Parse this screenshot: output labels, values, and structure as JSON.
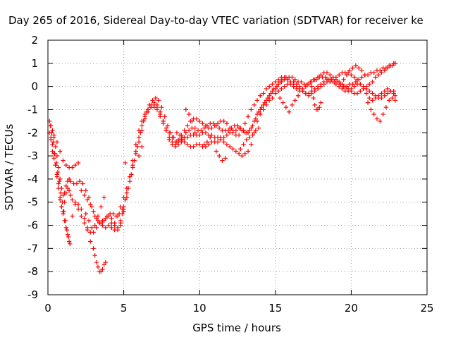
{
  "chart_data": {
    "type": "scatter",
    "title": "Day 265 of 2016, Sidereal Day-to-day VTEC variation (SDTVAR) for receiver ke",
    "xlabel": "GPS time / hours",
    "ylabel": "SDTVAR / TECUs",
    "xlim": [
      0,
      25
    ],
    "ylim": [
      -9,
      2
    ],
    "xticks": [
      0,
      5,
      10,
      15,
      20,
      25
    ],
    "xtick_labels": [
      "0",
      "5",
      "10",
      "15",
      "20",
      "25"
    ],
    "yticks": [
      2,
      1,
      0,
      -1,
      -2,
      -3,
      -4,
      -5,
      -6,
      -7,
      -8,
      -9
    ],
    "ytick_labels": [
      "2",
      "1",
      "0",
      "-1",
      "-2",
      "-3",
      "-4",
      "-5",
      "-6",
      "-7",
      "-8",
      "-9"
    ],
    "grid": true,
    "marker": "+",
    "color": "#ff0000",
    "series": [
      {
        "x": [
          0.1,
          0.2,
          0.3,
          0.4,
          0.5,
          0.6,
          0.7,
          0.8,
          0.9,
          1.0,
          1.1,
          1.2,
          1.3,
          1.4,
          1.5,
          1.6,
          1.8,
          2.0,
          2.2,
          2.4,
          2.6,
          2.8,
          3.0,
          3.2,
          3.4,
          3.6,
          3.8,
          4.0,
          4.2,
          4.4,
          4.6,
          4.8,
          5.0,
          5.2,
          5.4,
          5.6,
          5.8,
          6.0,
          6.2,
          6.4,
          6.6,
          6.8,
          7.0,
          7.2,
          7.4,
          7.6,
          7.8,
          8.0,
          8.2,
          8.4,
          8.6,
          8.8,
          9.0,
          9.2,
          9.4,
          9.6,
          9.8,
          10.0,
          10.2,
          10.4,
          10.6,
          10.8,
          11.0,
          11.2,
          11.4,
          11.6,
          11.8,
          12.0,
          12.2,
          12.4,
          12.6,
          12.8,
          13.0,
          13.2,
          13.4,
          13.6,
          13.8,
          14.0,
          14.2,
          14.4,
          14.6,
          14.8,
          15.0,
          15.2,
          15.4,
          15.6,
          15.8,
          16.0,
          16.2,
          16.4,
          16.6,
          16.8,
          17.0,
          17.2,
          17.4,
          17.6,
          17.8,
          18.0,
          18.2,
          18.4,
          18.6,
          18.8,
          19.0,
          19.2,
          19.4,
          19.6,
          19.8,
          20.0,
          20.2,
          20.4,
          20.6,
          20.8,
          21.0,
          21.2,
          21.4,
          21.6,
          21.8,
          22.0,
          22.2,
          22.4,
          22.6,
          22.8,
          22.9
        ],
        "y": [
          -2.0,
          -2.3,
          -2.8,
          -3.1,
          -3.4,
          -3.8,
          -4.2,
          -4.8,
          -5.2,
          -5.4,
          -5.0,
          -4.6,
          -4.4,
          -4.5,
          -4.7,
          -4.9,
          -5.1,
          -5.3,
          -5.6,
          -5.9,
          -6.1,
          -6.3,
          -6.3,
          -6.1,
          -5.9,
          -5.8,
          -5.7,
          -5.6,
          -5.7,
          -5.9,
          -5.6,
          -5.2,
          -4.8,
          -4.4,
          -3.9,
          -3.4,
          -2.9,
          -2.4,
          -1.9,
          -1.4,
          -1.1,
          -0.9,
          -0.8,
          -0.9,
          -1.2,
          -1.5,
          -1.9,
          -2.2,
          -2.4,
          -2.5,
          -2.4,
          -2.3,
          -2.2,
          -2.2,
          -2.1,
          -2.1,
          -2.1,
          -2.1,
          -2.0,
          -2.0,
          -2.1,
          -2.1,
          -2.2,
          -2.2,
          -2.2,
          -2.2,
          -2.1,
          -2.0,
          -1.9,
          -1.9,
          -1.8,
          -1.9,
          -2.0,
          -2.0,
          -1.8,
          -1.5,
          -1.2,
          -1.0,
          -0.8,
          -0.6,
          -0.4,
          -0.2,
          -0.1,
          0.1,
          0.2,
          0.3,
          0.3,
          0.2,
          0.2,
          0.1,
          0.0,
          -0.1,
          0.0,
          0.1,
          0.2,
          0.3,
          0.4,
          0.5,
          0.6,
          0.6,
          0.5,
          0.4,
          0.3,
          0.2,
          0.1,
          0.0,
          -0.1,
          -0.2,
          -0.3,
          -0.3,
          -0.2,
          -0.1,
          0.0,
          0.1,
          0.2,
          0.4,
          0.5,
          0.6,
          0.7,
          0.8,
          0.9,
          1.0,
          1.0
        ]
      },
      {
        "x": [
          0.2,
          0.3,
          0.4,
          0.5,
          0.6,
          0.7,
          0.8,
          0.9,
          1.0,
          1.1,
          1.2,
          1.3,
          1.4,
          1.5,
          1.7,
          1.9,
          2.1,
          2.3,
          2.5,
          2.7,
          2.9,
          3.1,
          3.3,
          3.5,
          3.7,
          3.9,
          4.1,
          4.3,
          4.5,
          4.7,
          4.9,
          5.1,
          5.3,
          5.5,
          5.7,
          5.9,
          6.1,
          6.3,
          6.5,
          6.7,
          6.9,
          7.1,
          7.3,
          7.5,
          7.7,
          7.9,
          8.1,
          8.3,
          8.5,
          8.7,
          8.9,
          9.1,
          9.3,
          9.5,
          9.7,
          9.9,
          10.1,
          10.3,
          10.5,
          10.7,
          10.9,
          11.1,
          11.3,
          11.5,
          11.7,
          11.9,
          12.1,
          12.3,
          12.5,
          12.7,
          12.9,
          13.1,
          13.3,
          13.5,
          13.7,
          13.9,
          14.1,
          14.3,
          14.5,
          14.7,
          14.9,
          15.1,
          15.3,
          15.5,
          15.7,
          15.9,
          16.1,
          16.3,
          16.5,
          16.7,
          16.9,
          17.1,
          17.3,
          17.5,
          17.7,
          17.9,
          18.1,
          18.3,
          18.5,
          18.7,
          18.9,
          19.1,
          19.3,
          19.5,
          19.7,
          19.9,
          20.1,
          20.3,
          20.5,
          20.7,
          20.9,
          21.1,
          21.3,
          21.5,
          21.7,
          21.9,
          22.1,
          22.3,
          22.5,
          22.7,
          22.9
        ],
        "y": [
          -1.7,
          -1.9,
          -2.2,
          -2.6,
          -3.0,
          -3.5,
          -4.0,
          -4.4,
          -4.7,
          -4.6,
          -4.3,
          -4.1,
          -4.0,
          -4.1,
          -4.2,
          -4.2,
          -4.1,
          -4.2,
          -4.5,
          -4.8,
          -5.2,
          -5.6,
          -5.8,
          -5.9,
          -5.8,
          -5.6,
          -5.5,
          -5.5,
          -5.6,
          -5.5,
          -5.3,
          -4.9,
          -4.4,
          -3.8,
          -3.2,
          -2.6,
          -2.0,
          -1.5,
          -1.1,
          -0.8,
          -0.6,
          -0.5,
          -0.6,
          -0.9,
          -1.3,
          -1.7,
          -2.0,
          -2.2,
          -2.4,
          -2.3,
          -2.2,
          -2.0,
          -1.9,
          -1.8,
          -1.8,
          -1.9,
          -1.9,
          -1.8,
          -1.7,
          -1.6,
          -1.6,
          -1.7,
          -1.8,
          -1.9,
          -1.9,
          -1.9,
          -1.8,
          -1.7,
          -1.7,
          -1.8,
          -1.9,
          -2.0,
          -1.9,
          -1.7,
          -1.4,
          -1.1,
          -0.9,
          -0.7,
          -0.5,
          -0.3,
          -0.1,
          0.0,
          0.2,
          0.3,
          0.4,
          0.4,
          0.4,
          0.3,
          0.2,
          0.2,
          0.1,
          0.1,
          0.2,
          0.3,
          0.3,
          0.4,
          0.4,
          0.4,
          0.3,
          0.3,
          0.2,
          0.2,
          0.1,
          0.0,
          0.0,
          0.1,
          0.1,
          0.2,
          0.3,
          0.4,
          0.5,
          0.5,
          0.6,
          0.6,
          0.7,
          0.7,
          0.8,
          0.8,
          0.9,
          0.9,
          1.0
        ]
      },
      {
        "x": [
          0.3,
          0.4,
          0.5,
          0.6,
          0.7,
          0.8,
          0.9,
          1.0,
          1.1,
          1.2,
          1.3,
          1.4,
          1.6,
          1.8,
          2.0,
          2.2,
          2.4,
          2.6,
          2.8,
          3.0,
          3.1,
          3.2,
          3.3,
          3.4,
          3.5,
          3.6,
          3.7,
          3.8,
          4.2,
          4.4,
          4.6,
          4.8,
          5.0,
          5.2,
          5.4,
          5.6,
          5.8,
          6.0,
          6.2,
          6.4,
          6.6,
          6.8,
          7.0,
          7.2,
          7.4,
          7.6,
          7.8,
          8.0,
          8.2,
          8.4,
          8.6,
          8.8,
          9.0,
          9.2,
          9.4,
          9.6,
          9.8,
          10.0,
          10.2,
          10.4,
          10.6,
          10.8,
          11.0,
          11.2,
          11.4,
          11.6,
          11.8,
          12.0,
          12.2,
          12.4,
          12.6,
          12.8,
          13.0,
          13.2,
          13.4,
          13.6,
          13.8,
          14.0,
          14.2,
          14.4,
          14.6,
          14.8,
          15.0,
          15.2,
          15.4,
          15.6,
          15.8,
          16.0,
          16.2,
          16.4,
          16.6,
          16.8,
          17.0,
          17.2,
          17.4,
          17.6,
          17.8,
          18.0,
          18.2,
          18.4,
          18.6,
          18.8,
          19.0,
          19.2,
          19.4,
          19.6,
          19.8,
          20.0,
          20.2,
          20.4,
          20.6,
          20.8,
          21.0,
          21.2,
          21.4,
          21.6,
          21.8,
          22.0,
          22.2,
          22.4,
          22.6,
          22.8,
          22.9
        ],
        "y": [
          -2.5,
          -2.9,
          -3.4,
          -3.9,
          -4.4,
          -4.9,
          -5.2,
          -5.5,
          -5.8,
          -6.1,
          -6.4,
          -6.7,
          -5.6,
          -5.0,
          -5.1,
          -5.3,
          -5.7,
          -6.2,
          -6.7,
          -7.0,
          -7.3,
          -7.6,
          -7.8,
          -8.0,
          -8.0,
          -7.9,
          -7.7,
          -7.6,
          -6.1,
          -6.2,
          -6.1,
          -6.0,
          -5.4,
          -4.8,
          -4.1,
          -3.5,
          -2.8,
          -2.2,
          -1.7,
          -1.3,
          -1.0,
          -0.8,
          -0.7,
          -0.8,
          -1.1,
          -1.5,
          -1.9,
          -2.3,
          -2.5,
          -2.6,
          -2.5,
          -2.4,
          -2.4,
          -2.5,
          -2.6,
          -2.6,
          -2.5,
          -2.5,
          -2.6,
          -2.6,
          -2.5,
          -2.4,
          -2.4,
          -2.4,
          -2.3,
          -2.4,
          -2.5,
          -2.6,
          -2.7,
          -2.8,
          -2.9,
          -3.0,
          -2.9,
          -2.8,
          -2.5,
          -2.0,
          -1.5,
          -1.2,
          -1.0,
          -0.8,
          -0.6,
          -0.5,
          -0.3,
          -0.2,
          -0.1,
          0.0,
          0.1,
          0.1,
          0.0,
          -0.1,
          -0.2,
          -0.2,
          -0.3,
          -0.4,
          -0.3,
          -0.2,
          -0.1,
          0.0,
          0.1,
          0.2,
          0.2,
          0.3,
          0.4,
          0.5,
          0.6,
          0.6,
          0.6,
          0.5,
          0.4,
          0.3,
          0.1,
          -0.1,
          -0.3,
          -0.5,
          -0.6,
          -0.5,
          -0.4,
          -0.3,
          -0.2,
          -0.1,
          -0.2,
          -0.3,
          -0.4
        ]
      },
      {
        "x": [
          0.2,
          0.4,
          0.6,
          0.8,
          1.0,
          1.2,
          1.4,
          1.6,
          1.8,
          2.0,
          2.2,
          2.4,
          2.6,
          2.8,
          3.0,
          3.2,
          3.4,
          3.6,
          3.8,
          4.0,
          4.2,
          4.4,
          4.6,
          4.8,
          5.0,
          5.2,
          5.4,
          5.6,
          5.8,
          6.0,
          6.2,
          6.4,
          6.6,
          6.8,
          7.0,
          7.2,
          7.4,
          7.6,
          7.8,
          8.0,
          8.2,
          8.4,
          8.6,
          8.8,
          9.0,
          9.2,
          9.4,
          9.6,
          9.8,
          10.0,
          10.2,
          10.4,
          10.6,
          10.8,
          11.0,
          11.2,
          11.4,
          11.6,
          11.8,
          12.0,
          12.2,
          12.4,
          12.6,
          12.8,
          13.0,
          13.2,
          13.4,
          13.6,
          13.8,
          14.0,
          14.2,
          14.4,
          14.6,
          14.8,
          15.0,
          15.2,
          15.4,
          15.6,
          15.8,
          16.0,
          16.2,
          16.4,
          16.6,
          16.8,
          17.0,
          17.2,
          17.4,
          17.6,
          17.8,
          18.0,
          18.2,
          18.4,
          18.6,
          18.8,
          19.0,
          19.2,
          19.4,
          19.6,
          19.8,
          20.0,
          20.2,
          20.4,
          20.6,
          20.8,
          21.0,
          21.2,
          21.4,
          21.6,
          21.8,
          22.0,
          22.2,
          22.4,
          22.6,
          22.8
        ],
        "y": [
          -2.2,
          -2.1,
          -2.4,
          -2.8,
          -3.2,
          -3.4,
          -3.5,
          -3.5,
          -3.4,
          -3.3,
          -4.5,
          -4.7,
          -4.9,
          -5.1,
          -5.4,
          -5.7,
          -5.9,
          -6.0,
          -6.1,
          -6.0,
          -5.9,
          -6.0,
          -6.2,
          -5.9,
          -5.3,
          -4.6,
          -3.9,
          -3.2,
          -2.5,
          -1.9,
          -1.5,
          -1.2,
          -1.0,
          -0.9,
          -0.9,
          -1.0,
          -1.3,
          -1.6,
          -1.8,
          -2.0,
          -2.2,
          -2.4,
          -2.3,
          -2.1,
          -1.9,
          -1.7,
          -1.5,
          -1.4,
          -1.4,
          -1.5,
          -1.6,
          -1.7,
          -1.8,
          -1.8,
          -1.7,
          -1.6,
          -1.5,
          -1.5,
          -1.6,
          -1.8,
          -2.0,
          -2.1,
          -2.1,
          -1.9,
          -1.6,
          -1.3,
          -1.0,
          -0.8,
          -0.6,
          -0.4,
          -0.3,
          -0.1,
          0.0,
          0.1,
          0.2,
          0.3,
          0.4,
          0.4,
          0.3,
          0.2,
          0.1,
          0.0,
          -0.1,
          -0.2,
          -0.3,
          -0.3,
          -0.2,
          -0.1,
          0.0,
          0.1,
          0.2,
          0.3,
          0.3,
          0.2,
          0.1,
          0.0,
          -0.1,
          -0.2,
          -0.2,
          -0.1,
          0.0,
          0.1,
          0.1,
          0.0,
          -0.1,
          -0.2,
          -0.3,
          -0.4,
          -0.5,
          -0.5,
          -0.4,
          -0.3,
          -0.2,
          -0.2
        ]
      },
      {
        "x": [
          0.1,
          0.15,
          0.25,
          0.35,
          0.45,
          0.55,
          0.65,
          0.75,
          0.85,
          0.95,
          1.05,
          1.15,
          1.25,
          1.35,
          1.45,
          2.5,
          2.7,
          2.9,
          3.1,
          3.3,
          3.5,
          3.7,
          4.8,
          4.9,
          5.0,
          5.1,
          6.0,
          6.2,
          8.5,
          8.7,
          8.9,
          9.1,
          9.3,
          9.5,
          9.7,
          10.3,
          10.5,
          10.7,
          11.1,
          11.3,
          11.5,
          11.7,
          12.7,
          12.9,
          13.1,
          13.3,
          13.5,
          13.7,
          13.9,
          15.3,
          15.5,
          15.7,
          15.9,
          16.1,
          16.3,
          16.5,
          17.4,
          17.5,
          17.6,
          17.7,
          17.8,
          17.9,
          18.0,
          19.5,
          19.7,
          19.9,
          20.1,
          20.3,
          20.5,
          20.7,
          20.9,
          21.1,
          21.3,
          21.5,
          21.7,
          21.9,
          22.1,
          22.3,
          22.5,
          22.7,
          22.9
        ],
        "y": [
          -1.5,
          -1.7,
          -2.0,
          -2.4,
          -2.9,
          -3.3,
          -3.7,
          -4.1,
          -4.6,
          -5.0,
          -5.4,
          -5.8,
          -6.2,
          -6.5,
          -6.8,
          -5.5,
          -5.8,
          -6.1,
          -6.0,
          -5.6,
          -5.2,
          -4.8,
          -5.8,
          -5.5,
          -5.2,
          -3.3,
          -3.0,
          -2.6,
          -2.0,
          -2.1,
          -2.3,
          -1.0,
          -1.2,
          -1.5,
          -2.0,
          -2.5,
          -2.4,
          -2.2,
          -2.8,
          -3.0,
          -3.2,
          -3.1,
          -2.7,
          -2.5,
          -2.3,
          -2.2,
          -2.1,
          -1.9,
          -1.8,
          -0.5,
          -0.7,
          -0.9,
          -1.1,
          -0.8,
          -0.6,
          -0.4,
          0.0,
          -0.5,
          -0.8,
          -1.0,
          -1.0,
          -0.9,
          -0.7,
          0.3,
          0.5,
          0.7,
          0.8,
          0.9,
          0.8,
          0.7,
          0.5,
          -0.7,
          -1.0,
          -1.2,
          -1.4,
          -1.5,
          -1.2,
          -0.9,
          -0.6,
          -0.5,
          -0.6
        ]
      }
    ]
  }
}
